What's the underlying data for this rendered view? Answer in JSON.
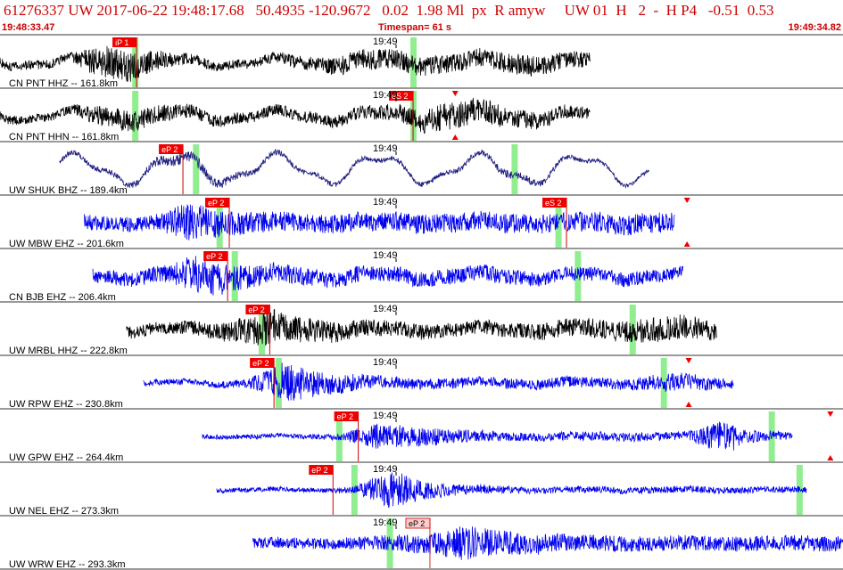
{
  "header": {
    "title": "61276337 UW 2017-06-22 19:48:17.68   50.4935 -120.9672   0.02  1.98 Ml  px  R amyw     UW 01  H   2  -  H P4   -0.51  0.53",
    "start_time": "19:48:33.47",
    "timespan": "Timespan=  61 s",
    "end_time": "19:49:34.82"
  },
  "colors": {
    "header_text": "#cc0000",
    "pick_box": "#ee0000",
    "pick_box_light": "#ffcccc",
    "green_band": "#90ee90",
    "black_trace": "#000000",
    "blue_trace": "#0000ee"
  },
  "minute_label": "19:49",
  "traces": [
    {
      "label": "CN PNT HHZ -- 161.8km",
      "color": "black",
      "start": 0.0,
      "end": 0.7,
      "onset": 0.16,
      "env": [
        0.25,
        0.25,
        0.25,
        0.9,
        0.7,
        0.35,
        0.25,
        0.25,
        0.3,
        0.4,
        0.55,
        0.55,
        0.5,
        0.5,
        0.5,
        0.55,
        0.5,
        0.4
      ],
      "picks": [
        {
          "label": "iP 1",
          "t": 0.162,
          "style": "red"
        }
      ],
      "green": [
        0.16,
        0.49
      ],
      "triangles": false,
      "lowfreq": 0.5
    },
    {
      "label": "CN PNT HHN -- 161.8km",
      "color": "black",
      "start": 0.0,
      "end": 0.7,
      "onset": 0.16,
      "env": [
        0.25,
        0.25,
        0.25,
        0.6,
        0.6,
        0.45,
        0.35,
        0.3,
        0.3,
        0.3,
        0.35,
        0.4,
        0.6,
        0.8,
        0.7,
        0.5,
        0.4,
        0.35
      ],
      "picks": [
        {
          "label": "eS 2",
          "t": 0.49,
          "style": "red"
        }
      ],
      "green": [
        0.16,
        0.49
      ],
      "triangles": true,
      "tri_t": 0.54,
      "lowfreq": 0.6
    },
    {
      "label": "UW SHUK BHZ -- 189.4km",
      "color": "navy",
      "start": 0.07,
      "end": 0.77,
      "onset": 0.22,
      "env": [
        0.25,
        0.25,
        0.3,
        0.5,
        0.6,
        0.4,
        0.3,
        0.25,
        0.25,
        0.25,
        0.25,
        0.25,
        0.3,
        0.4,
        0.3,
        0.2,
        0.2,
        0.2
      ],
      "picks": [
        {
          "label": "eP 2",
          "t": 0.217,
          "style": "red"
        }
      ],
      "green": [
        0.232,
        0.61
      ],
      "triangles": false,
      "lowfreq": 1.6
    },
    {
      "label": "UW MBW EHZ -- 201.6km",
      "color": "blue",
      "start": 0.1,
      "end": 0.8,
      "onset": 0.27,
      "env": [
        0.35,
        0.35,
        0.35,
        0.9,
        0.6,
        0.5,
        0.45,
        0.45,
        0.45,
        0.45,
        0.45,
        0.45,
        0.45,
        0.45,
        0.45,
        0.5,
        0.5,
        0.45
      ],
      "picks": [
        {
          "label": "eP 2",
          "t": 0.272,
          "style": "red"
        },
        {
          "label": "eS 2",
          "t": 0.672,
          "style": "red"
        }
      ],
      "green": [
        0.26,
        0.662
      ],
      "triangles": true,
      "tri_t": 0.815,
      "lowfreq": 0.2
    },
    {
      "label": "CN BJB EHZ -- 206.4km",
      "color": "blue",
      "start": 0.11,
      "end": 0.81,
      "onset": 0.27,
      "env": [
        0.35,
        0.35,
        0.4,
        0.95,
        0.7,
        0.5,
        0.45,
        0.4,
        0.4,
        0.4,
        0.4,
        0.4,
        0.4,
        0.35,
        0.35,
        0.35,
        0.35,
        0.3
      ],
      "picks": [
        {
          "label": "eP 2",
          "t": 0.27,
          "style": "red"
        }
      ],
      "green": [
        0.278,
        0.685
      ],
      "triangles": false,
      "lowfreq": 0.4
    },
    {
      "label": "UW MRBL HHZ -- 222.8km",
      "color": "black",
      "start": 0.15,
      "end": 0.85,
      "onset": 0.32,
      "env": [
        0.3,
        0.3,
        0.35,
        0.5,
        0.9,
        0.6,
        0.5,
        0.4,
        0.4,
        0.35,
        0.35,
        0.35,
        0.4,
        0.45,
        0.5,
        0.6,
        0.6,
        0.45
      ],
      "picks": [
        {
          "label": "eP 2",
          "t": 0.32,
          "style": "red"
        }
      ],
      "green": [
        0.31,
        0.75
      ],
      "triangles": false,
      "lowfreq": 0.3
    },
    {
      "label": "UW RPW EHZ -- 230.8km",
      "color": "blue",
      "start": 0.17,
      "end": 0.87,
      "onset": 0.33,
      "env": [
        0.15,
        0.15,
        0.15,
        0.2,
        0.95,
        0.6,
        0.4,
        0.3,
        0.25,
        0.25,
        0.25,
        0.25,
        0.25,
        0.25,
        0.25,
        0.45,
        0.35,
        0.2
      ],
      "picks": [
        {
          "label": "eP 2",
          "t": 0.325,
          "style": "red"
        }
      ],
      "green": [
        0.33,
        0.787
      ],
      "triangles": true,
      "tri_t": 0.817,
      "lowfreq": 0.2
    },
    {
      "label": "UW GPW EHZ -- 264.4km",
      "color": "blue",
      "start": 0.24,
      "end": 0.94,
      "onset": 0.425,
      "env": [
        0.1,
        0.1,
        0.1,
        0.1,
        0.15,
        0.6,
        0.45,
        0.35,
        0.25,
        0.2,
        0.2,
        0.2,
        0.2,
        0.2,
        0.2,
        0.75,
        0.25,
        0.15
      ],
      "picks": [
        {
          "label": "eP 2",
          "t": 0.425,
          "style": "red"
        }
      ],
      "green": [
        0.402,
        0.915
      ],
      "triangles": true,
      "tri_t": 0.985,
      "lowfreq": 0.1
    },
    {
      "label": "UW NEL EHZ -- 273.3km",
      "color": "blue",
      "start": 0.257,
      "end": 0.957,
      "onset": 0.395,
      "env": [
        0.1,
        0.1,
        0.1,
        0.1,
        0.15,
        0.9,
        0.4,
        0.25,
        0.2,
        0.15,
        0.15,
        0.15,
        0.15,
        0.15,
        0.15,
        0.15,
        0.15,
        0.15
      ],
      "picks": [
        {
          "label": "eP 2",
          "t": 0.395,
          "style": "red"
        }
      ],
      "green": [
        0.42,
        0.948
      ],
      "triangles": false,
      "lowfreq": 0.1
    },
    {
      "label": "UW WRW EHZ -- 293.3km",
      "color": "blue",
      "start": 0.3,
      "end": 1.0,
      "onset": 0.51,
      "env": [
        0.25,
        0.25,
        0.25,
        0.3,
        0.35,
        0.45,
        0.8,
        0.6,
        0.5,
        0.4,
        0.35,
        0.35,
        0.35,
        0.35,
        0.35,
        0.35,
        0.35,
        0.35
      ],
      "picks": [
        {
          "label": "eP 2",
          "t": 0.51,
          "style": "light"
        }
      ],
      "green": [
        0.462
      ],
      "triangles": false,
      "lowfreq": 0.1
    }
  ]
}
